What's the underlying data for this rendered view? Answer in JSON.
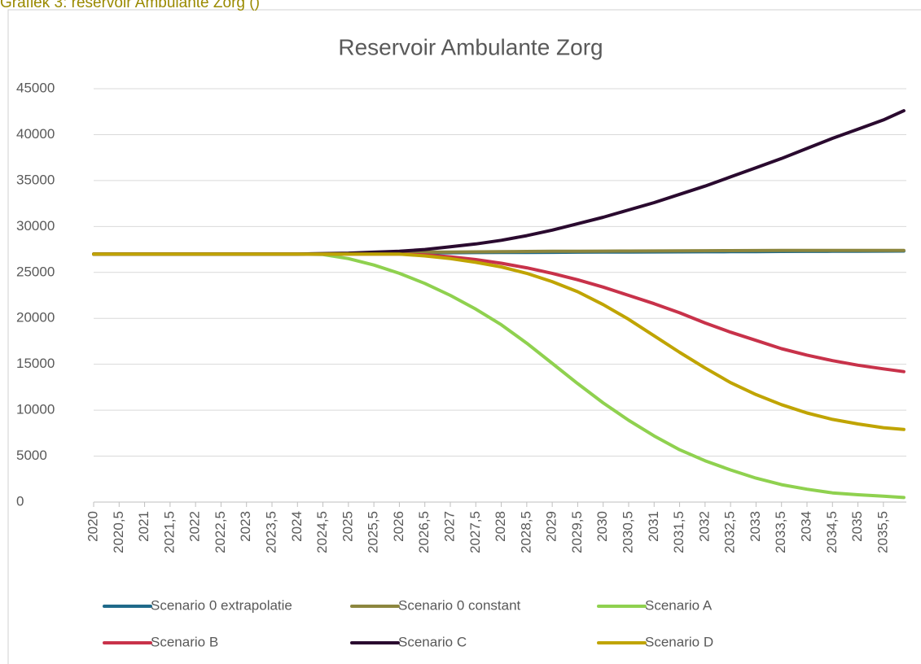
{
  "caption": "Grafiek 3: reservoir Ambulante Zorg ()",
  "chart_data": {
    "type": "line",
    "title": "Reservoir Ambulante Zorg",
    "x": [
      2020,
      2020.5,
      2021,
      2021.5,
      2022,
      2022.5,
      2023,
      2023.5,
      2024,
      2024.5,
      2025,
      2025.5,
      2026,
      2026.5,
      2027,
      2027.5,
      2028,
      2028.5,
      2029,
      2029.5,
      2030,
      2030.5,
      2031,
      2031.5,
      2032,
      2032.5,
      2033,
      2033.5,
      2034,
      2034.5,
      2035,
      2035.5,
      2035.9
    ],
    "xlim": [
      2020,
      2035.95
    ],
    "xticks": [
      2020,
      {
        "value": 2020.5,
        "label": "2020,5"
      },
      2021,
      {
        "value": 2021.5,
        "label": "2021,5"
      },
      2022,
      {
        "value": 2022.5,
        "label": "2022,5"
      },
      2023,
      {
        "value": 2023.5,
        "label": "2023,5"
      },
      2024,
      {
        "value": 2024.5,
        "label": "2024,5"
      },
      2025,
      {
        "value": 2025.5,
        "label": "2025,5"
      },
      2026,
      {
        "value": 2026.5,
        "label": "2026,5"
      },
      2027,
      {
        "value": 2027.5,
        "label": "2027,5"
      },
      2028,
      {
        "value": 2028.5,
        "label": "2028,5"
      },
      2029,
      {
        "value": 2029.5,
        "label": "2029,5"
      },
      2030,
      {
        "value": 2030.5,
        "label": "2030,5"
      },
      2031,
      {
        "value": 2031.5,
        "label": "2031,5"
      },
      2032,
      {
        "value": 2032.5,
        "label": "2032,5"
      },
      2033,
      {
        "value": 2033.5,
        "label": "2033,5"
      },
      2034,
      {
        "value": 2034.5,
        "label": "2034,5"
      },
      2035,
      {
        "value": 2035.5,
        "label": "2035,5"
      }
    ],
    "ylim": [
      0,
      45000
    ],
    "yticks": [
      0,
      5000,
      10000,
      15000,
      20000,
      25000,
      30000,
      35000,
      40000,
      45000
    ],
    "grid": true,
    "legend": "bottom",
    "series": [
      {
        "name": "Scenario 0 extrapolatie",
        "color": "#1f6a8a",
        "values": [
          27000,
          27000,
          27000,
          27000,
          27000,
          27000,
          27000,
          27000,
          27000,
          27000,
          27050,
          27080,
          27100,
          27120,
          27140,
          27160,
          27170,
          27180,
          27190,
          27200,
          27210,
          27220,
          27230,
          27240,
          27250,
          27260,
          27270,
          27280,
          27290,
          27300,
          27310,
          27320,
          27330
        ]
      },
      {
        "name": "Scenario 0 constant",
        "color": "#8c863e",
        "values": [
          27000,
          27000,
          27000,
          27000,
          27000,
          27000,
          27000,
          27000,
          27000,
          27000,
          27050,
          27100,
          27150,
          27200,
          27220,
          27240,
          27260,
          27280,
          27300,
          27310,
          27320,
          27330,
          27340,
          27350,
          27360,
          27370,
          27380,
          27390,
          27400,
          27400,
          27400,
          27400,
          27400
        ]
      },
      {
        "name": "Scenario A",
        "color": "#8fd14f",
        "values": [
          27000,
          27000,
          27000,
          27000,
          27000,
          27000,
          27000,
          27000,
          27000,
          26950,
          26500,
          25800,
          24900,
          23800,
          22500,
          21000,
          19300,
          17300,
          15100,
          12900,
          10800,
          8900,
          7200,
          5700,
          4500,
          3500,
          2600,
          1900,
          1400,
          1000,
          800,
          650,
          500
        ]
      },
      {
        "name": "Scenario B",
        "color": "#c8324a",
        "values": [
          27000,
          27000,
          27000,
          27000,
          27000,
          27000,
          27000,
          27000,
          27000,
          27000,
          27000,
          27000,
          27000,
          26900,
          26700,
          26400,
          26000,
          25500,
          24900,
          24200,
          23400,
          22500,
          21600,
          20600,
          19500,
          18500,
          17600,
          16700,
          16000,
          15400,
          14900,
          14500,
          14200
        ]
      },
      {
        "name": "Scenario C",
        "color": "#2a0a2f",
        "values": [
          27000,
          27000,
          27000,
          27000,
          27000,
          27000,
          27000,
          27000,
          27000,
          27050,
          27100,
          27200,
          27300,
          27500,
          27800,
          28100,
          28500,
          29000,
          29600,
          30300,
          31000,
          31800,
          32600,
          33500,
          34400,
          35400,
          36400,
          37400,
          38500,
          39600,
          40600,
          41600,
          42600
        ]
      },
      {
        "name": "Scenario D",
        "color": "#c0a400",
        "values": [
          27000,
          27000,
          27000,
          27000,
          27000,
          27000,
          27000,
          27000,
          27000,
          27000,
          27000,
          27000,
          27000,
          26800,
          26500,
          26100,
          25600,
          24900,
          24000,
          22900,
          21500,
          19900,
          18100,
          16300,
          14600,
          13000,
          11700,
          10600,
          9700,
          9000,
          8500,
          8100,
          7900
        ]
      }
    ]
  }
}
